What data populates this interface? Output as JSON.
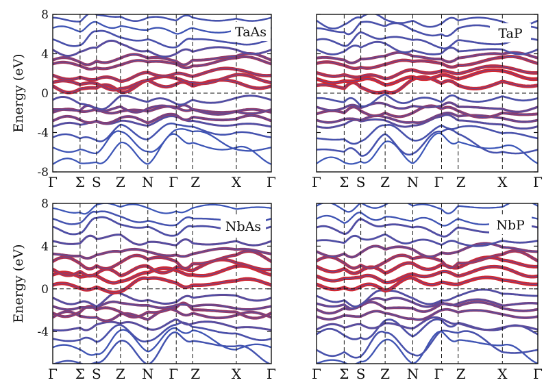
{
  "figure": {
    "colors": {
      "blue": "#3b56b8",
      "red": "#d8262b",
      "mix": "#7a3a7e",
      "axis": "#111111"
    }
  },
  "chart_data": [
    {
      "type": "line",
      "material": "TaAs",
      "ylabel": "Energy (eV)",
      "ylim": [
        -8,
        8
      ],
      "yticks": [
        "-8",
        "-4",
        "0",
        "4",
        "8"
      ],
      "kpoints": [
        "Γ",
        "Σ",
        "S",
        "Z",
        "N",
        "Γ",
        "Z",
        "X",
        "Γ"
      ],
      "fermi_level": 0
    },
    {
      "type": "line",
      "material": "TaP",
      "ylabel": "",
      "ylim": [
        -8,
        8
      ],
      "yticks": [],
      "kpoints": [
        "Γ",
        "Σ",
        "S",
        "Z",
        "N",
        "Γ",
        "Z",
        "X",
        "Γ"
      ],
      "fermi_level": 0
    },
    {
      "type": "line",
      "material": "NbAs",
      "ylabel": "Energy (eV)",
      "ylim": [
        -7,
        8
      ],
      "yticks": [
        "-4",
        "0",
        "4",
        "8"
      ],
      "kpoints": [
        "Γ",
        "Σ",
        "S",
        "Z",
        "N",
        "Γ",
        "Z",
        "X",
        "Γ"
      ],
      "fermi_level": 0
    },
    {
      "type": "line",
      "material": "NbP",
      "ylabel": "",
      "ylim": [
        -7,
        8
      ],
      "yticks": [],
      "kpoints": [
        "Γ",
        "Σ",
        "S",
        "Z",
        "N",
        "Γ",
        "Z",
        "X",
        "Γ"
      ],
      "fermi_level": 0
    }
  ]
}
